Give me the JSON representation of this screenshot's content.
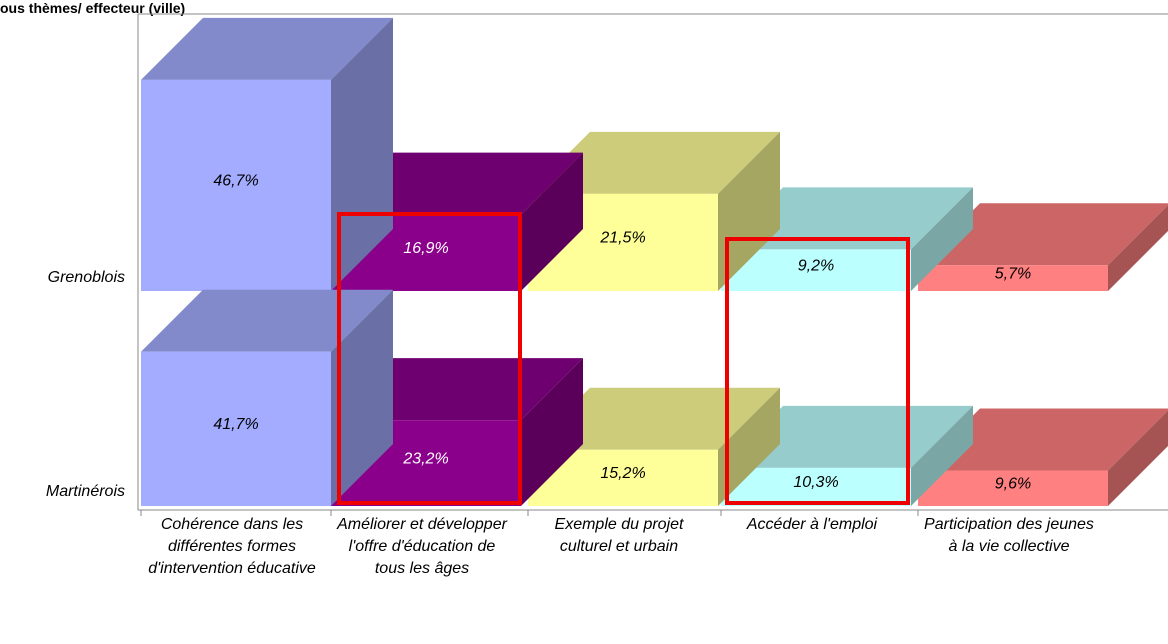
{
  "chart_data": {
    "type": "bar3d",
    "title": "ous thèmes/ effecteur (ville)",
    "categories": [
      "Cohérence dans les différentes formes d'intervention éducative",
      "Améliorer et développer l'offre d'éducation de tous les âges",
      "Exemple du projet culturel et urbain",
      "Accéder à l'emploi",
      "Participation des jeunes à la vie collective"
    ],
    "colors": [
      "#a3acff",
      "#8b008b",
      "#ffff99",
      "#bbffff",
      "#ff8080"
    ],
    "series": [
      {
        "name": "Grenoblois",
        "values": [
          46.7,
          16.9,
          21.5,
          9.2,
          5.7
        ],
        "value_labels": [
          "46,7%",
          "16,9%",
          "21,5%",
          "9,2%",
          "5,7%"
        ]
      },
      {
        "name": "Martinérois",
        "values": [
          41.7,
          23.2,
          15.2,
          10.3,
          9.6
        ],
        "value_labels": [
          "41,7%",
          "23,2%",
          "15,2%",
          "10,3%",
          "9,6%"
        ]
      }
    ]
  }
}
